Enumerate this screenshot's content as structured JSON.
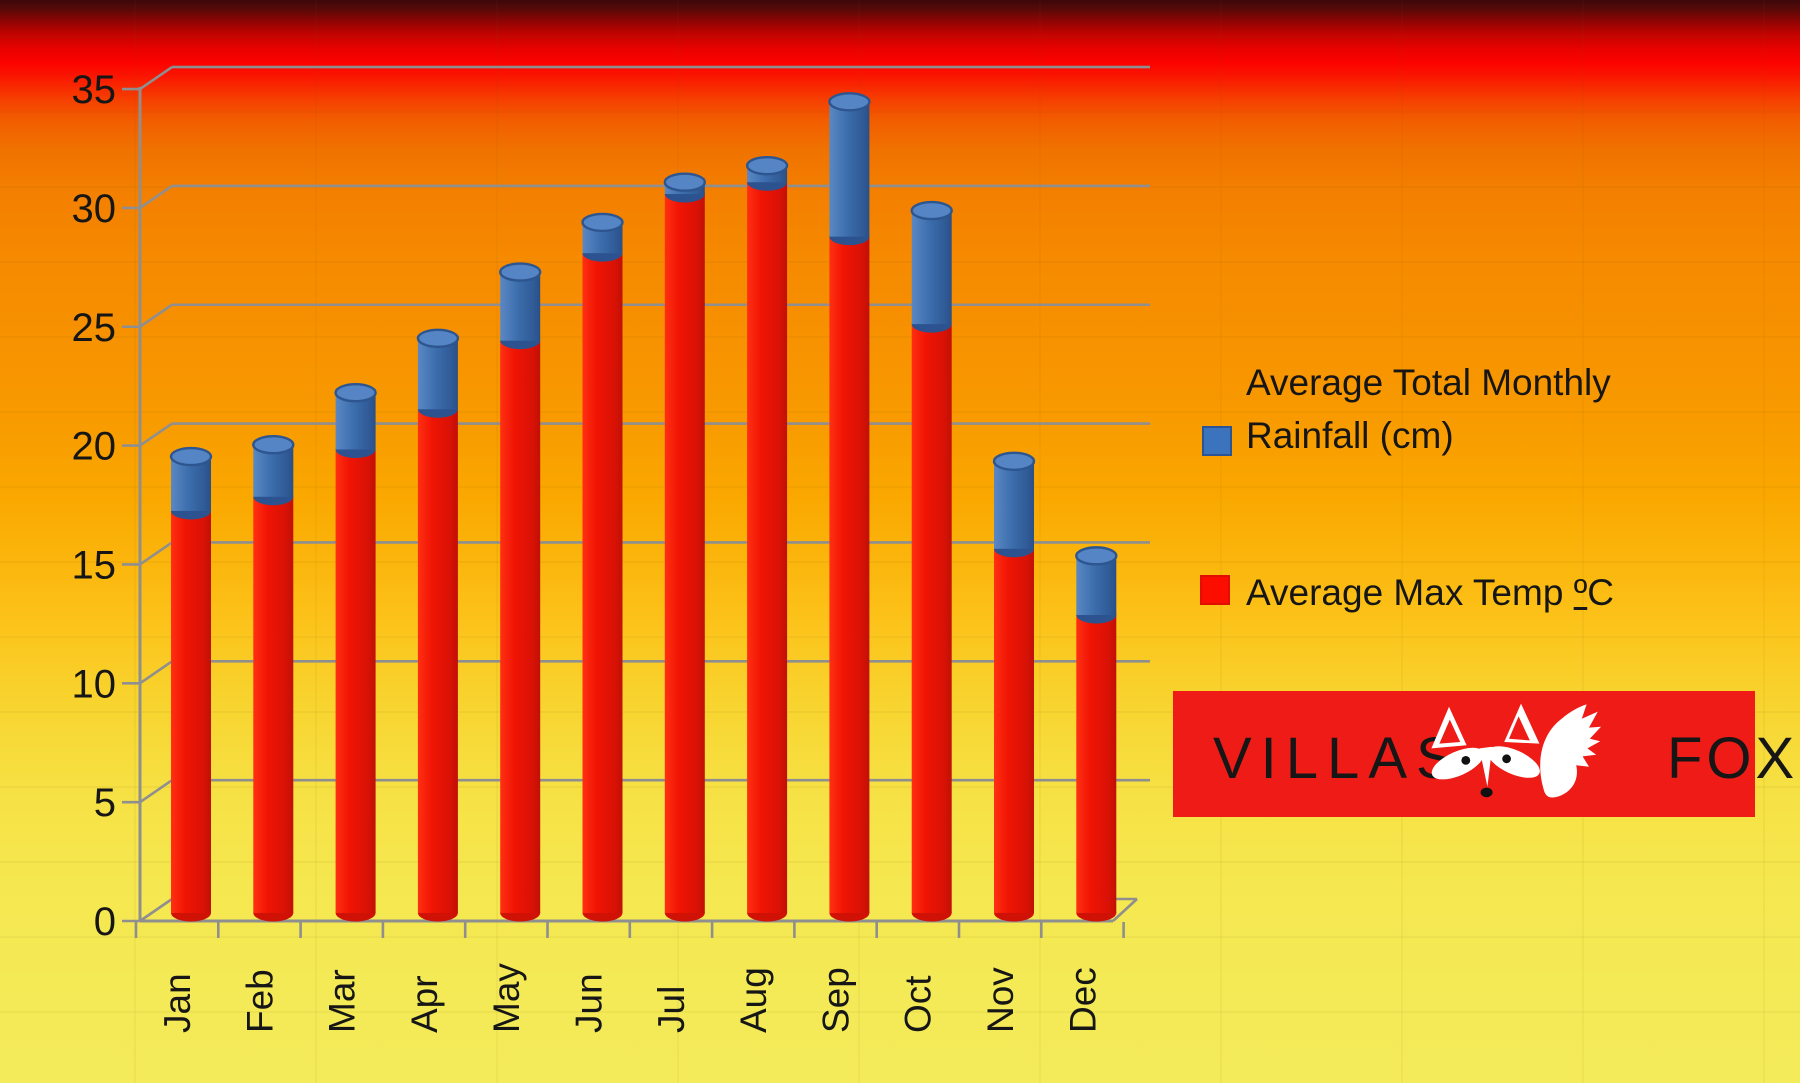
{
  "chart_data": {
    "type": "bar",
    "subtype": "3d-cylinder-stacked",
    "title": "",
    "categories": [
      "Jan",
      "Feb",
      "Mar",
      "Apr",
      "May",
      "Jun",
      "Jul",
      "Aug",
      "Sep",
      "Oct",
      "Nov",
      "Dec"
    ],
    "series": [
      {
        "name": "Average Max Temp ºC",
        "color": "#ee1505",
        "values": [
          17.0,
          17.6,
          19.6,
          21.3,
          24.2,
          27.9,
          30.4,
          30.9,
          28.6,
          24.9,
          15.4,
          12.6
        ]
      },
      {
        "name": "Average Total Monthly Rainfall (cm)",
        "color": "#3b6fae",
        "values": [
          2.3,
          2.2,
          2.4,
          3.0,
          2.9,
          1.3,
          0.5,
          0.7,
          5.7,
          4.8,
          3.7,
          2.5
        ]
      }
    ],
    "stacked": true,
    "xlabel": "",
    "ylabel": "",
    "ylim": [
      0,
      35
    ],
    "ytick_step": 5,
    "yticks": [
      0,
      5,
      10,
      15,
      20,
      25,
      30,
      35
    ],
    "grid": true,
    "legend_position": "right"
  },
  "legend": {
    "rainfall": "Average Total Monthly Rainfall (cm)",
    "temp_parts": [
      "Average Max Temp ",
      "º",
      "C"
    ]
  },
  "logo": {
    "word1": "VILLAS",
    "word2": "FOX"
  },
  "colors": {
    "bar_red": "#ee1505",
    "bar_blue": "#3b6fae",
    "gridline": "#8f8f8f",
    "axis_text": "#161616",
    "logo_background": "#ee1b16",
    "logo_text": "#161616",
    "fox_white": "#ffffff"
  }
}
